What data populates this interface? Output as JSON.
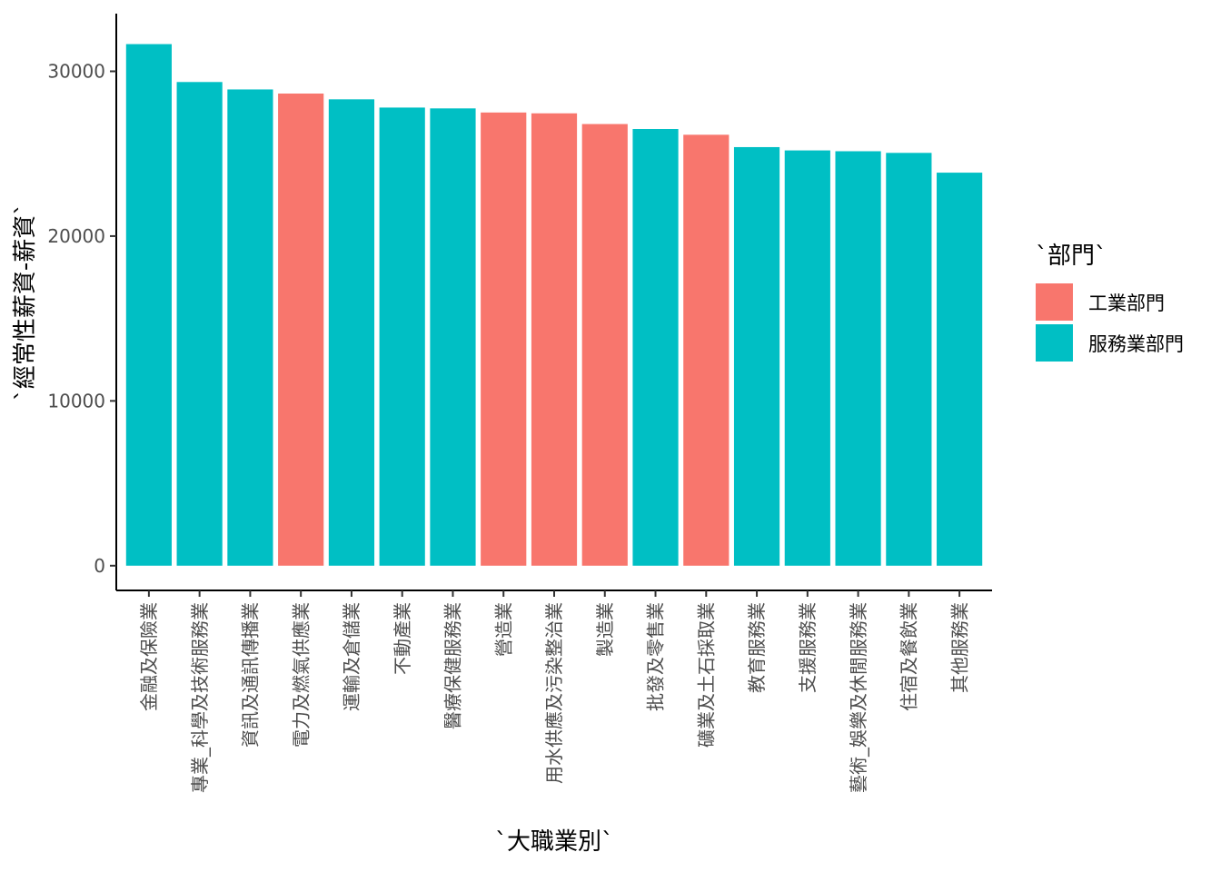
{
  "chart_data": {
    "type": "bar",
    "xlabel": "`大職業別`",
    "ylabel": "`經常性薪資-薪資`",
    "ylim": [
      -1500,
      33500
    ],
    "yticks": [
      0,
      10000,
      20000,
      30000
    ],
    "grid": false,
    "legend": {
      "title": "`部門`",
      "placement": "right",
      "entries": [
        {
          "name": "工業部門",
          "color": "#F8766D"
        },
        {
          "name": "服務業部門",
          "color": "#00BFC4"
        }
      ]
    },
    "categories": [
      "金融及保險業",
      "專業_科學及技術服務業",
      "資訊及通訊傳播業",
      "電力及燃氣供應業",
      "運輸及倉儲業",
      "不動產業",
      "醫療保健服務業",
      "營造業",
      "用水供應及污染整治業",
      "製造業",
      "批發及零售業",
      "礦業及土石採取業",
      "教育服務業",
      "支援服務業",
      "藝術_娛樂及休閒服務業",
      "住宿及餐飲業",
      "其他服務業"
    ],
    "values": [
      31650,
      29350,
      28900,
      28650,
      28300,
      27800,
      27750,
      27500,
      27450,
      26800,
      26500,
      26150,
      25400,
      25200,
      25150,
      25050,
      23850
    ],
    "groups": [
      "服務業部門",
      "服務業部門",
      "服務業部門",
      "工業部門",
      "服務業部門",
      "服務業部門",
      "服務業部門",
      "工業部門",
      "工業部門",
      "工業部門",
      "服務業部門",
      "工業部門",
      "服務業部門",
      "服務業部門",
      "服務業部門",
      "服務業部門",
      "服務業部門"
    ]
  }
}
